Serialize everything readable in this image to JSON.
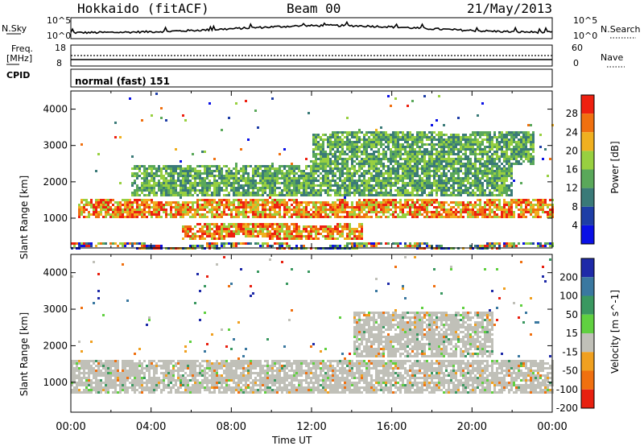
{
  "header": {
    "station": "Hokkaido (fitACF)",
    "beam": "Beam 00",
    "date": "21/May/2013"
  },
  "noise_panel": {
    "left_label": "N.Sky",
    "right_label": "N.Search",
    "left_ticks": [
      "10^5",
      "10^0"
    ],
    "right_ticks": [
      "10^5",
      "10^0"
    ]
  },
  "freq_panel": {
    "left_label_1": "Freq.",
    "left_label_2": "[MHz]",
    "right_label": "Nave",
    "left_ticks": [
      "18",
      "8"
    ],
    "right_ticks": [
      "60",
      "0"
    ]
  },
  "cpid": {
    "label": "CPID",
    "value": "normal (fast) 151"
  },
  "chart_data": [
    {
      "type": "heatmap",
      "quantity": "Power",
      "ylabel": "Slant Range [km]",
      "xlabel": "Time UT",
      "x_ticks": [
        "00:00",
        "04:00",
        "08:00",
        "12:00",
        "16:00",
        "20:00",
        "00:00"
      ],
      "xlim_hours": [
        0,
        24
      ],
      "y_ticks": [
        1000,
        2000,
        3000,
        4000
      ],
      "ylim": [
        180,
        4500
      ],
      "colorbar": {
        "label": "Power [dB]",
        "ticks": [
          4,
          8,
          12,
          16,
          20,
          24,
          28
        ],
        "colors": [
          "#0a10e6",
          "#1e3ea6",
          "#3a7a78",
          "#5aa85a",
          "#98d040",
          "#f0b020",
          "#f07010",
          "#ee2010"
        ]
      },
      "bands": [
        {
          "t0": 0.3,
          "t1": 24,
          "r_lo": 1000,
          "r_hi": 1550,
          "level": "high"
        },
        {
          "t0": 5.5,
          "t1": 14.5,
          "r_lo": 450,
          "r_hi": 900,
          "level": "high"
        },
        {
          "t0": 3,
          "t1": 22,
          "r_lo": 1600,
          "r_hi": 2500,
          "level": "medium"
        },
        {
          "t0": 12,
          "t1": 23,
          "r_lo": 2500,
          "r_hi": 3400,
          "level": "medium"
        },
        {
          "t0": 0,
          "t1": 24,
          "r_lo": 180,
          "r_hi": 350,
          "level": "low"
        }
      ]
    },
    {
      "type": "heatmap",
      "quantity": "Velocity",
      "ylabel": "Slant Range [km]",
      "xlabel": "Time UT",
      "x_ticks": [
        "00:00",
        "04:00",
        "08:00",
        "12:00",
        "16:00",
        "20:00",
        "00:00"
      ],
      "xlim_hours": [
        0,
        24
      ],
      "y_ticks": [
        1000,
        2000,
        3000,
        4000
      ],
      "ylim": [
        180,
        4500
      ],
      "colorbar": {
        "label": "Velocity [m s^-1]",
        "ticks": [
          200,
          100,
          50,
          15,
          -15,
          -50,
          -100,
          -200
        ],
        "colors": [
          "#1e2aa8",
          "#3a78a0",
          "#3a9860",
          "#60d040",
          "#c0c0b8",
          "#f0a020",
          "#f07010",
          "#e82010"
        ]
      },
      "bands": [
        {
          "t0": 0,
          "t1": 24,
          "r_lo": 700,
          "r_hi": 1650,
          "level": "ground_scatter"
        },
        {
          "t0": 14,
          "t1": 21,
          "r_lo": 1700,
          "r_hi": 3000,
          "level": "ground_scatter"
        }
      ]
    }
  ],
  "xaxis": {
    "title": "Time UT",
    "ticks": [
      "00:00",
      "04:00",
      "08:00",
      "12:00",
      "16:00",
      "20:00",
      "00:00"
    ]
  }
}
